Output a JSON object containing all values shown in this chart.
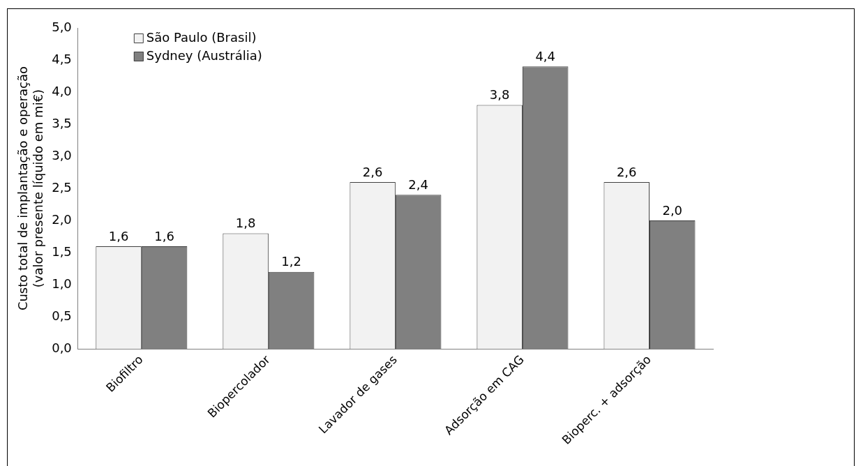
{
  "chart_data": {
    "type": "bar",
    "ylabel": "Custo total de implantação e operação\n(valor presente líquido em mi€)",
    "categories": [
      "Biofiltro",
      "Biopercolador",
      "Lavador de gases",
      "Adsorção em CAG",
      "Bioperc. + adsorção"
    ],
    "series": [
      {
        "name": "São Paulo (Brasil)",
        "color": "#f2f2f2",
        "values": [
          1.6,
          1.8,
          2.6,
          3.8,
          2.6
        ],
        "value_labels": [
          "1,6",
          "1,8",
          "2,6",
          "3,8",
          "2,6"
        ]
      },
      {
        "name": "Sydney (Austrália)",
        "color": "#808080",
        "values": [
          1.6,
          1.2,
          2.4,
          4.4,
          2.0
        ],
        "value_labels": [
          "1,6",
          "1,2",
          "2,4",
          "4,4",
          "2,0"
        ]
      }
    ],
    "ylim": [
      0,
      5
    ],
    "yticks": [
      {
        "value": 0,
        "label": "0,0"
      },
      {
        "value": 0.5,
        "label": "0,5"
      },
      {
        "value": 1,
        "label": "1,0"
      },
      {
        "value": 1.5,
        "label": "1,5"
      },
      {
        "value": 2,
        "label": "2,0"
      },
      {
        "value": 2.5,
        "label": "2,5"
      },
      {
        "value": 3,
        "label": "3,0"
      },
      {
        "value": 3.5,
        "label": "3,5"
      },
      {
        "value": 4,
        "label": "4,0"
      },
      {
        "value": 4.5,
        "label": "4,5"
      },
      {
        "value": 5,
        "label": "5,0"
      }
    ],
    "grid": false,
    "legend": "top left"
  }
}
